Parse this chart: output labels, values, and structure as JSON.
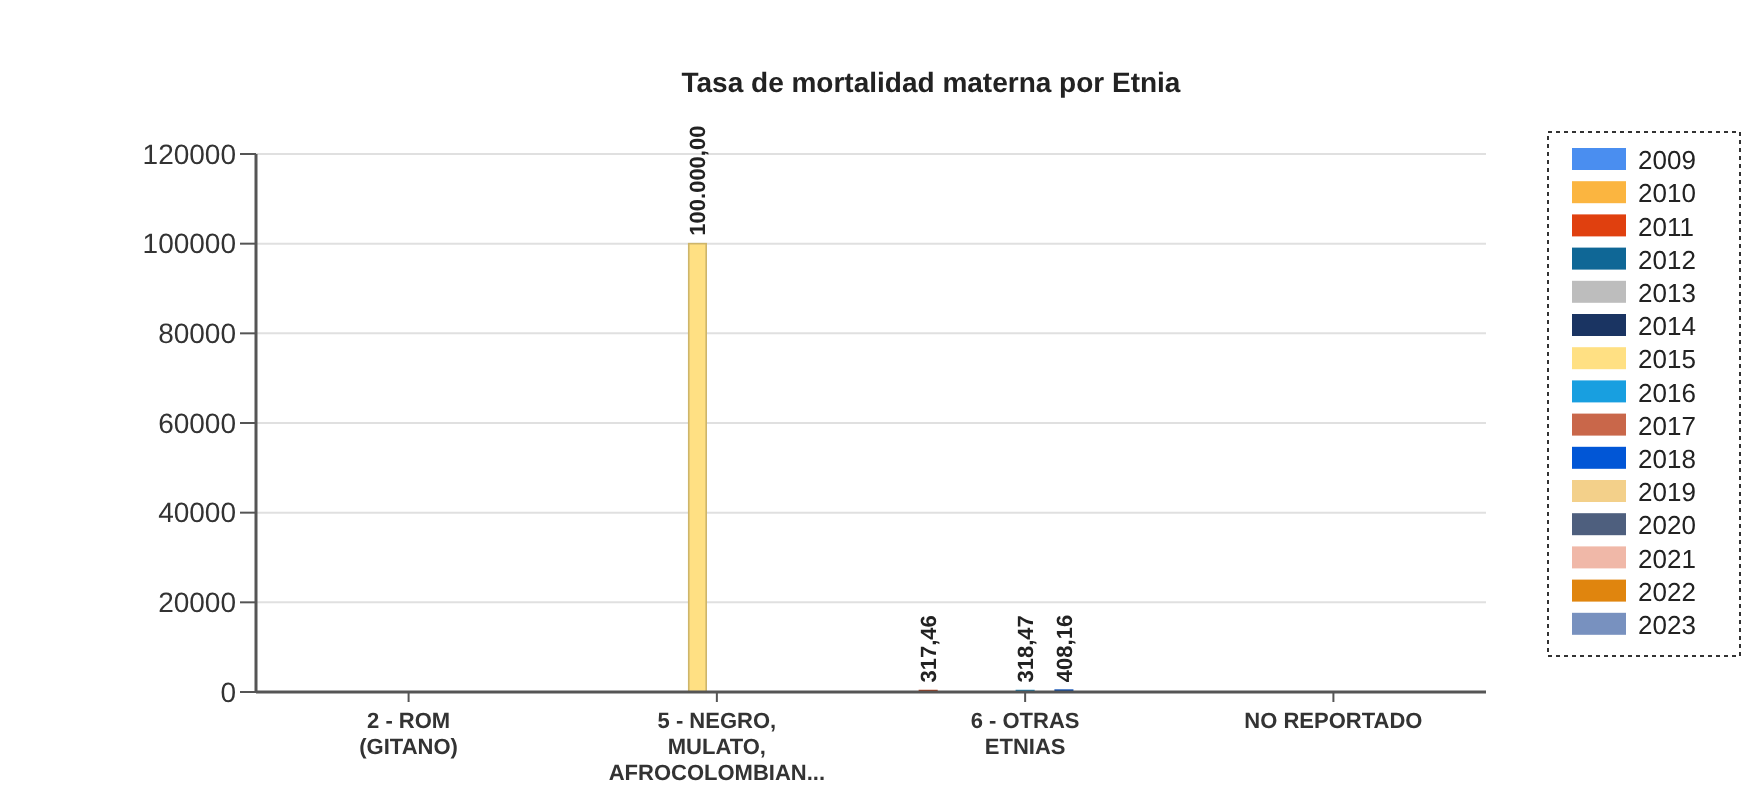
{
  "chart_data": {
    "type": "bar",
    "title": "Tasa de mortalidad materna por Etnia",
    "categories": [
      "2 - ROM (GITANO)",
      "5 - NEGRO, MULATO, AFROCOLOMBIAN...",
      "6 - OTRAS ETNIAS",
      "NO REPORTADO"
    ],
    "series": [
      {
        "name": "2009",
        "color": "#4a8ef0",
        "values": [
          null,
          null,
          null,
          null
        ]
      },
      {
        "name": "2010",
        "color": "#fbb540",
        "values": [
          null,
          null,
          null,
          null
        ]
      },
      {
        "name": "2011",
        "color": "#e0400f",
        "values": [
          null,
          null,
          317.46,
          null
        ],
        "value_labels": [
          null,
          null,
          "317,46",
          null
        ]
      },
      {
        "name": "2012",
        "color": "#0f6796",
        "values": [
          null,
          null,
          null,
          null
        ]
      },
      {
        "name": "2013",
        "color": "#bdbdbd",
        "values": [
          null,
          null,
          null,
          null
        ]
      },
      {
        "name": "2014",
        "color": "#1a3462",
        "values": [
          null,
          null,
          null,
          null
        ]
      },
      {
        "name": "2015",
        "color": "#ffe083",
        "values": [
          null,
          100000,
          null,
          null
        ],
        "value_labels": [
          null,
          "100.000,00",
          null,
          null
        ]
      },
      {
        "name": "2016",
        "color": "#189fe0",
        "values": [
          null,
          null,
          318.47,
          null
        ],
        "value_labels": [
          null,
          null,
          "318,47",
          null
        ]
      },
      {
        "name": "2017",
        "color": "#c9674a",
        "values": [
          null,
          null,
          null,
          null
        ]
      },
      {
        "name": "2018",
        "color": "#0156d6",
        "values": [
          null,
          null,
          408.16,
          null
        ],
        "value_labels": [
          null,
          null,
          "408,16",
          null
        ]
      },
      {
        "name": "2019",
        "color": "#f3d08a",
        "values": [
          null,
          null,
          null,
          null
        ]
      },
      {
        "name": "2020",
        "color": "#4e5f7e",
        "values": [
          null,
          null,
          null,
          null
        ]
      },
      {
        "name": "2021",
        "color": "#f0b8a8",
        "values": [
          null,
          null,
          null,
          null
        ]
      },
      {
        "name": "2022",
        "color": "#e0850e",
        "values": [
          null,
          null,
          null,
          null
        ]
      },
      {
        "name": "2023",
        "color": "#7891bf",
        "values": [
          null,
          null,
          null,
          null
        ]
      }
    ],
    "ylim": [
      0,
      120000
    ],
    "yticks": [
      0,
      20000,
      40000,
      60000,
      80000,
      100000,
      120000
    ],
    "grid": "y",
    "legend": "right"
  }
}
